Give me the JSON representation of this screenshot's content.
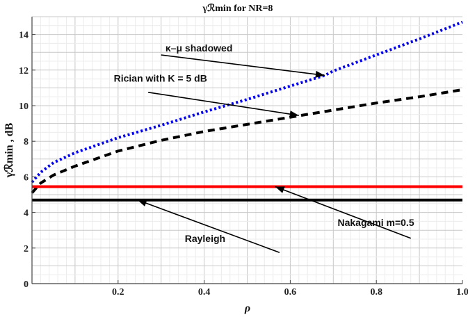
{
  "chart_data": {
    "type": "line",
    "title": "γℛmin for NR=8",
    "xlabel": "ρ",
    "ylabel": "γℛmin , dB",
    "xlim": [
      0,
      1.0
    ],
    "ylim": [
      0,
      15
    ],
    "x_ticks": [
      "0.2",
      "0.4",
      "0.6",
      "0.8",
      "1.0"
    ],
    "y_ticks": [
      "0",
      "2",
      "4",
      "6",
      "8",
      "10",
      "12",
      "14"
    ],
    "grid": true,
    "series": [
      {
        "name": "κ–μ shadowed",
        "color": "#0000ee",
        "dash": "dotted",
        "x": [
          0.0,
          0.02,
          0.05,
          0.1,
          0.2,
          0.3,
          0.4,
          0.5,
          0.6,
          0.68,
          0.7,
          0.8,
          0.9,
          1.0
        ],
        "y": [
          5.7,
          6.25,
          6.8,
          7.35,
          8.2,
          8.9,
          9.65,
          10.35,
          11.1,
          11.7,
          11.95,
          12.85,
          13.75,
          14.7
        ]
      },
      {
        "name": "Rician with K = 5 dB",
        "color": "#000000",
        "dash": "dashed",
        "x": [
          0.0,
          0.02,
          0.05,
          0.1,
          0.2,
          0.3,
          0.4,
          0.5,
          0.6,
          0.7,
          0.8,
          0.9,
          1.0
        ],
        "y": [
          5.1,
          5.65,
          6.1,
          6.6,
          7.45,
          8.05,
          8.55,
          8.95,
          9.35,
          9.75,
          10.15,
          10.5,
          10.9
        ]
      },
      {
        "name": "Nakagami m=0.5",
        "color": "#ff0000",
        "dash": "solid",
        "x": [
          0.0,
          1.0
        ],
        "y": [
          5.45,
          5.45
        ]
      },
      {
        "name": "Rayleigh",
        "color": "#000000",
        "dash": "solid",
        "x": [
          0.0,
          1.0
        ],
        "y": [
          4.7,
          4.7
        ]
      }
    ],
    "annotations": [
      {
        "text": "κ–μ shadowed",
        "series": 0,
        "point": [
          0.68,
          11.7
        ],
        "text_pos": [
          0.31,
          13.05
        ],
        "line_start": [
          0.3,
          12.85
        ]
      },
      {
        "text": "Rician with K = 5 dB",
        "series": 1,
        "point": [
          0.62,
          9.45
        ],
        "text_pos": [
          0.19,
          11.35
        ],
        "line_start": [
          0.27,
          10.75
        ]
      },
      {
        "text": "Nakagami m=0.5",
        "series": 2,
        "point": [
          0.565,
          5.45
        ],
        "text_pos": [
          0.71,
          3.25
        ],
        "line_start": [
          0.88,
          2.55
        ]
      },
      {
        "text": "Rayleigh",
        "series": 3,
        "point": [
          0.245,
          4.7
        ],
        "text_pos": [
          0.355,
          2.35
        ],
        "line_start": [
          0.575,
          1.75
        ]
      }
    ]
  }
}
